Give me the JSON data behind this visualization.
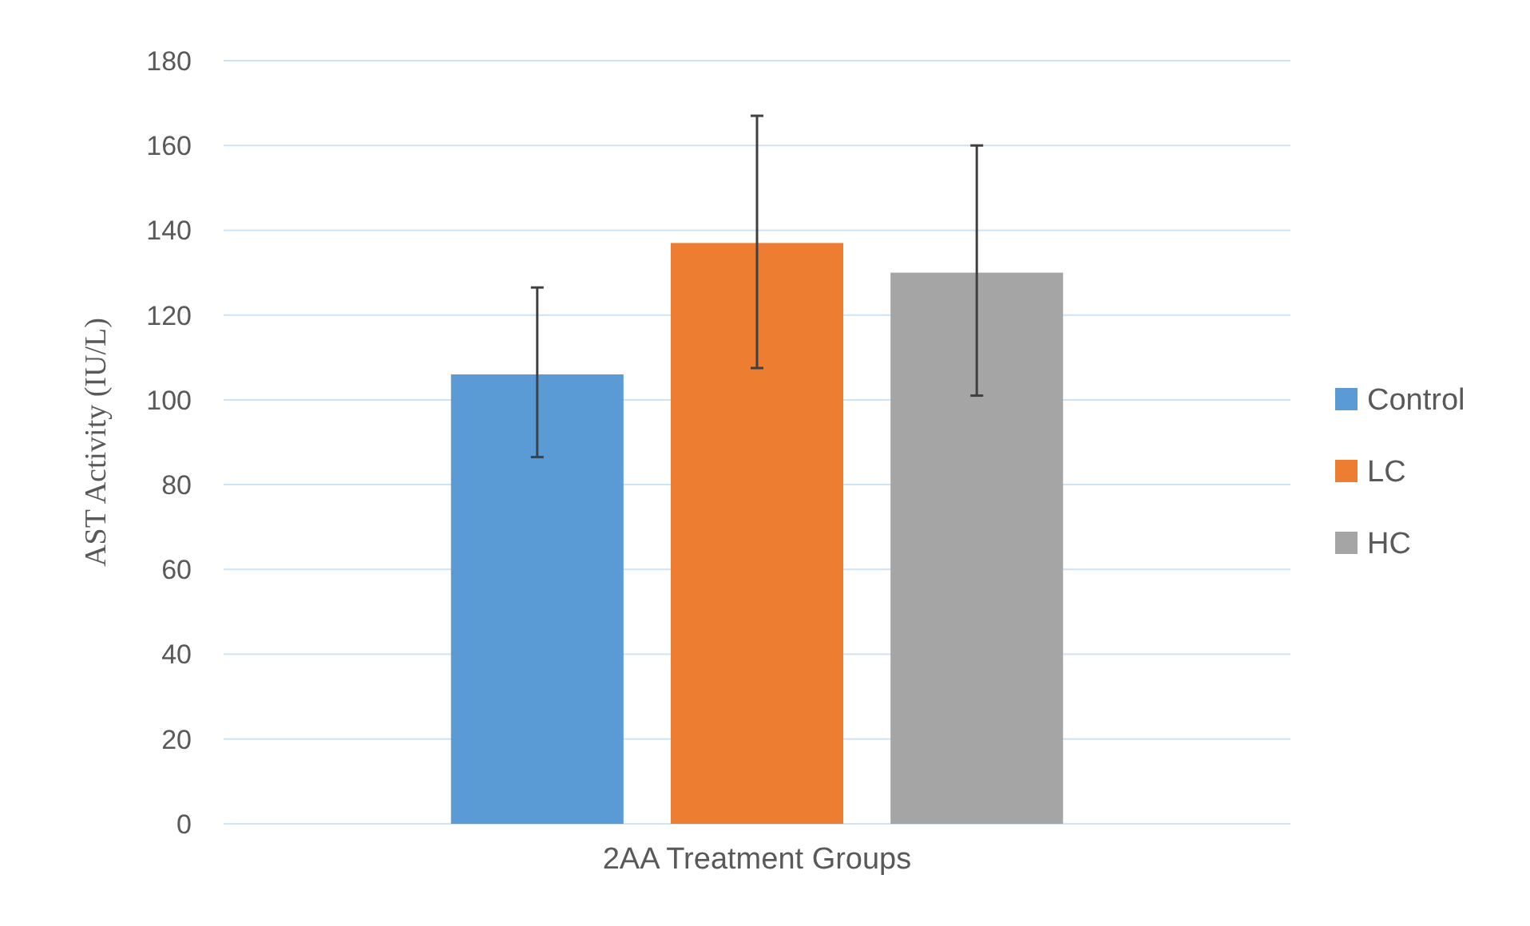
{
  "chart_data": {
    "type": "bar",
    "ylabel": "AST  Activity (IU/L)",
    "categories": [
      "2AA Treatment Groups"
    ],
    "series": [
      {
        "name": "Control",
        "color": "#5b9bd5",
        "values": [
          106
        ],
        "errors": [
          [
            86.5,
            126.5
          ]
        ]
      },
      {
        "name": "LC",
        "color": "#ed7d31",
        "values": [
          137
        ],
        "errors": [
          [
            107.5,
            167
          ]
        ]
      },
      {
        "name": "HC",
        "color": "#a5a5a5",
        "values": [
          130
        ],
        "errors": [
          [
            101,
            160
          ]
        ]
      }
    ],
    "ylim": [
      0,
      180
    ],
    "yticks": [
      0,
      20,
      40,
      60,
      80,
      100,
      120,
      140,
      160,
      180
    ],
    "grid": "y",
    "legend": "right"
  }
}
